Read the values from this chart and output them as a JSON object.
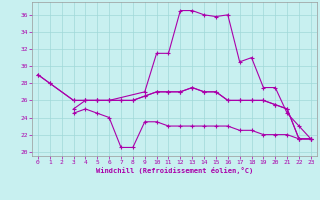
{
  "xlabel": "Windchill (Refroidissement éolien,°C)",
  "xlim": [
    -0.5,
    23.5
  ],
  "ylim": [
    19.5,
    37.5
  ],
  "yticks": [
    20,
    22,
    24,
    26,
    28,
    30,
    32,
    34,
    36
  ],
  "xticks": [
    0,
    1,
    2,
    3,
    4,
    5,
    6,
    7,
    8,
    9,
    10,
    11,
    12,
    13,
    14,
    15,
    16,
    17,
    18,
    19,
    20,
    21,
    22,
    23
  ],
  "bg_color": "#c8f0f0",
  "grid_color": "#a0d8d8",
  "line_color": "#aa00aa",
  "series": [
    {
      "x": [
        0,
        1,
        3,
        4,
        5,
        6,
        9,
        10,
        11,
        12,
        13,
        14,
        15,
        16,
        17,
        18,
        19,
        20,
        21,
        22,
        23
      ],
      "y": [
        29,
        28,
        26,
        26,
        26,
        26,
        27,
        31.5,
        31.5,
        36.5,
        36.5,
        36,
        35.8,
        36,
        30.5,
        31,
        27.5,
        27.5,
        24.5,
        23,
        21.5
      ]
    },
    {
      "x": [
        0,
        1,
        3,
        4,
        5,
        6,
        7,
        8,
        9,
        10,
        11,
        12,
        13,
        14,
        15,
        16,
        17,
        18,
        19,
        20,
        21,
        22,
        23
      ],
      "y": [
        29,
        28,
        26,
        26,
        26,
        26,
        26,
        26,
        26.5,
        27,
        27,
        27,
        27.5,
        27,
        27,
        26,
        26,
        26,
        26,
        25.5,
        25,
        21.5,
        21.5
      ]
    },
    {
      "x": [
        3,
        4,
        5,
        6,
        7,
        8,
        9,
        10,
        11,
        12,
        13,
        14,
        15,
        16,
        17,
        18,
        19,
        20,
        21,
        22,
        23
      ],
      "y": [
        25,
        26,
        26,
        26,
        26,
        26,
        26.5,
        27,
        27,
        27,
        27.5,
        27,
        27,
        26,
        26,
        26,
        26,
        25.5,
        25,
        21.5,
        21.5
      ]
    },
    {
      "x": [
        3,
        4,
        5,
        6,
        7,
        8,
        9,
        10,
        11,
        12,
        13,
        14,
        15,
        16,
        17,
        18,
        19,
        20,
        21,
        22,
        23
      ],
      "y": [
        24.5,
        25,
        24.5,
        24,
        20.5,
        20.5,
        23.5,
        23.5,
        23,
        23,
        23,
        23,
        23,
        23,
        22.5,
        22.5,
        22,
        22,
        22,
        21.5,
        21.5
      ]
    }
  ]
}
